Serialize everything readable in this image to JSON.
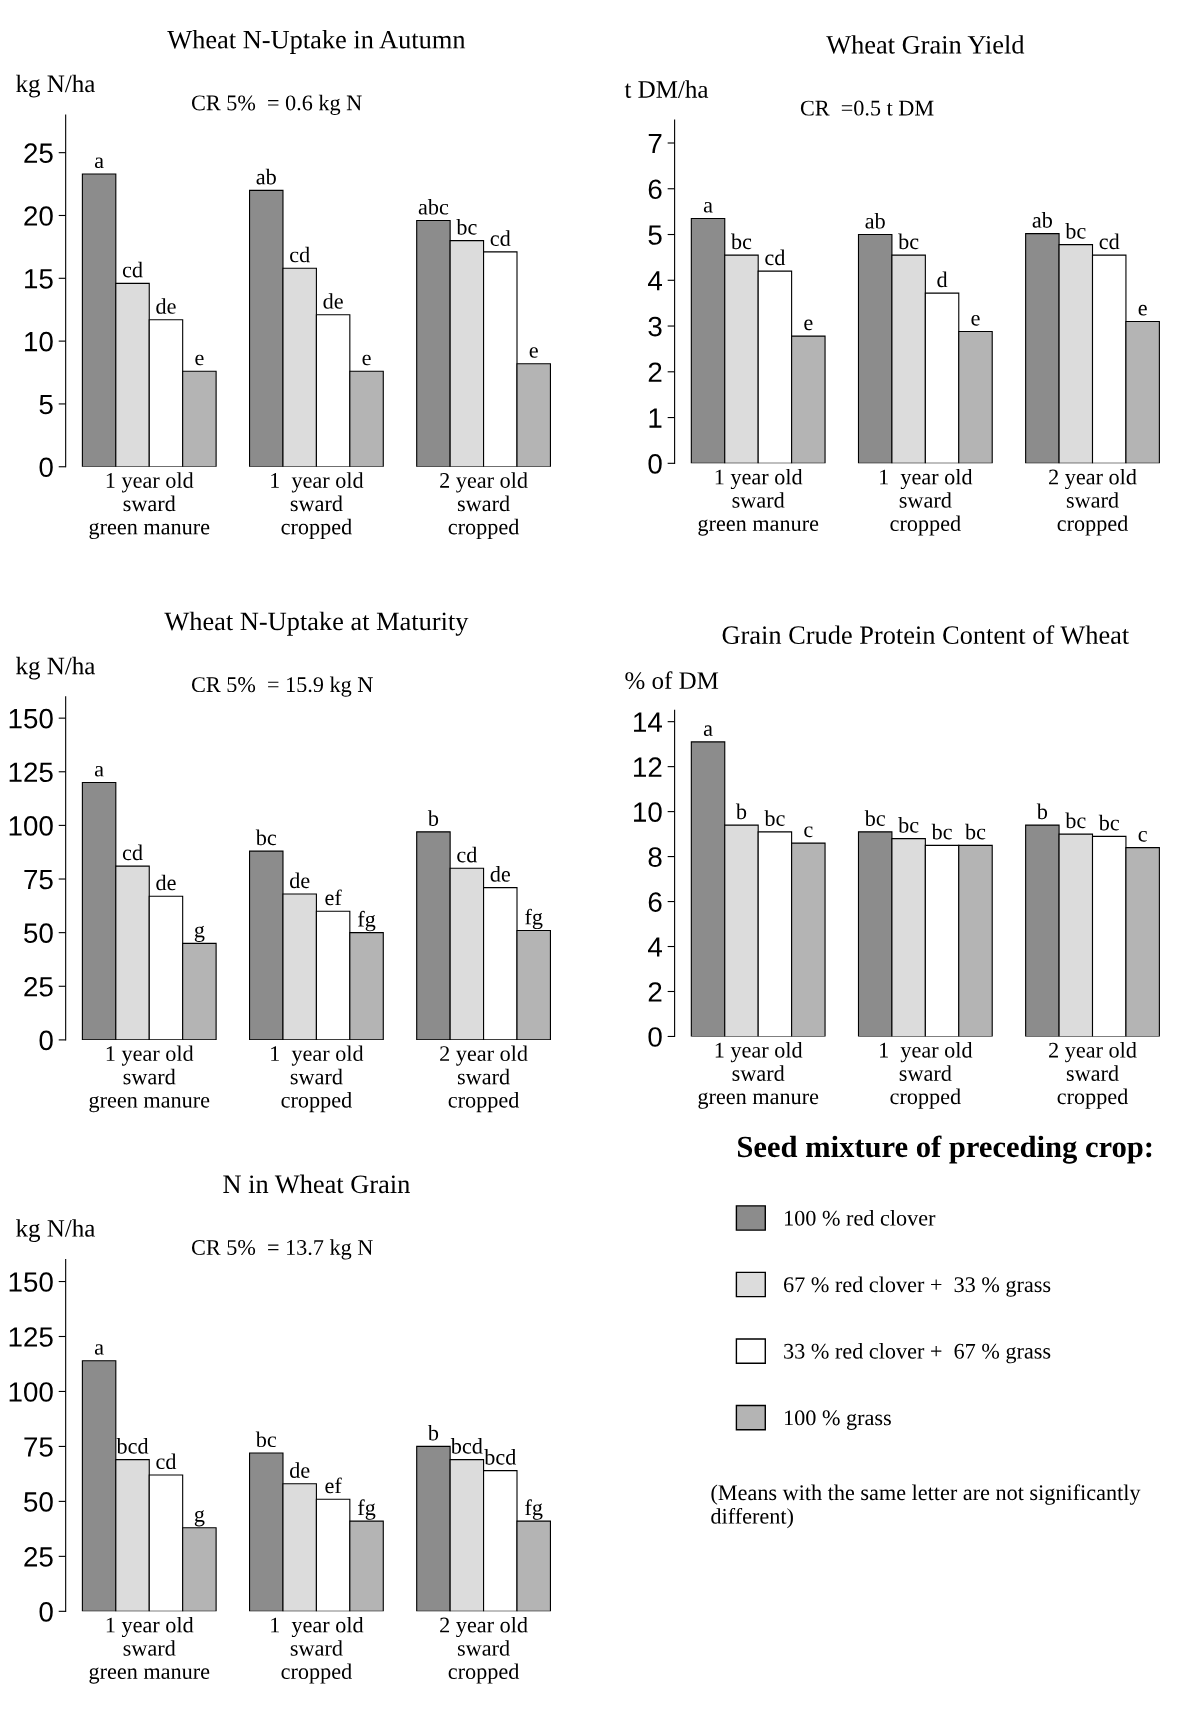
{
  "chart_data": [
    {
      "type": "bar",
      "title": "Wheat N-Uptake in Autumn",
      "ylabel": "kg N/ha",
      "categories": [
        "1 year old\nsward\ngreen manure",
        "1  year old\nsward\ncropped",
        "2 year old\nsward\ncropped"
      ],
      "ylim": [
        0,
        28
      ],
      "yticks": [
        0,
        5,
        10,
        15,
        20,
        25
      ],
      "grid": false,
      "annotations": [
        "CR 5%  = 0.6 kg N"
      ],
      "series": [
        {
          "color": "#8c8c8c",
          "values": [
            23.3,
            22.0,
            19.6
          ],
          "value_labels": [
            "a",
            "ab",
            "abc"
          ]
        },
        {
          "color": "#dcdcdc",
          "values": [
            14.6,
            15.8,
            18.0
          ],
          "value_labels": [
            "cd",
            "cd",
            "bc"
          ]
        },
        {
          "color": "#ffffff",
          "values": [
            11.7,
            12.1,
            17.1
          ],
          "value_labels": [
            "de",
            "de",
            "cd"
          ]
        },
        {
          "color": "#b4b4b4",
          "values": [
            7.6,
            7.6,
            8.2
          ],
          "value_labels": [
            "e",
            "e",
            "e"
          ]
        }
      ]
    },
    {
      "type": "bar",
      "title": "Wheat Grain Yield",
      "ylabel": "t DM/ha",
      "categories": [
        "1 year old\nsward\ngreen manure",
        "1  year old\nsward\ncropped",
        "2 year old\nsward\ncropped"
      ],
      "ylim": [
        0,
        7.5
      ],
      "yticks": [
        0,
        1,
        2,
        3,
        4,
        5,
        6,
        7
      ],
      "grid": false,
      "annotations": [
        "CR  =0.5 t DM"
      ],
      "series": [
        {
          "color": "#8c8c8c",
          "values": [
            5.35,
            5.0,
            5.02
          ],
          "value_labels": [
            "a",
            "ab",
            "ab"
          ]
        },
        {
          "color": "#dcdcdc",
          "values": [
            4.55,
            4.55,
            4.78
          ],
          "value_labels": [
            "bc",
            "bc",
            "bc"
          ]
        },
        {
          "color": "#ffffff",
          "values": [
            4.2,
            3.72,
            4.55
          ],
          "value_labels": [
            "cd",
            "d",
            "cd"
          ]
        },
        {
          "color": "#b4b4b4",
          "values": [
            2.78,
            2.88,
            3.1
          ],
          "value_labels": [
            "e",
            "e",
            "e"
          ]
        }
      ]
    },
    {
      "type": "bar",
      "title": "Wheat N-Uptake at Maturity",
      "ylabel": "kg N/ha",
      "categories": [
        "1 year old\nsward\ngreen manure",
        "1  year old\nsward\ncropped",
        "2 year old\nsward\ncropped"
      ],
      "ylim": [
        0,
        160
      ],
      "yticks": [
        0,
        25,
        50,
        75,
        100,
        125,
        150
      ],
      "grid": false,
      "annotations": [
        "CR 5%  = 15.9 kg N"
      ],
      "series": [
        {
          "color": "#8c8c8c",
          "values": [
            120,
            88,
            97
          ],
          "value_labels": [
            "a",
            "bc",
            "b"
          ]
        },
        {
          "color": "#dcdcdc",
          "values": [
            81,
            68,
            80
          ],
          "value_labels": [
            "cd",
            "de",
            "cd"
          ]
        },
        {
          "color": "#ffffff",
          "values": [
            67,
            60,
            71
          ],
          "value_labels": [
            "de",
            "ef",
            "de"
          ]
        },
        {
          "color": "#b4b4b4",
          "values": [
            45,
            50,
            51
          ],
          "value_labels": [
            "g",
            "fg",
            "fg"
          ]
        }
      ]
    },
    {
      "type": "bar",
      "title": "Grain Crude Protein Content of Wheat",
      "ylabel": "% of DM",
      "categories": [
        "1 year old\nsward\ngreen manure",
        "1  year old\nsward\ncropped",
        "2 year old\nsward\ncropped"
      ],
      "ylim": [
        0,
        14.5
      ],
      "yticks": [
        0,
        2,
        4,
        6,
        8,
        10,
        12,
        14
      ],
      "grid": false,
      "series": [
        {
          "color": "#8c8c8c",
          "values": [
            13.1,
            9.1,
            9.4
          ],
          "value_labels": [
            "a",
            "bc",
            "b"
          ]
        },
        {
          "color": "#dcdcdc",
          "values": [
            9.4,
            8.8,
            9.0
          ],
          "value_labels": [
            "b",
            "bc",
            "bc"
          ]
        },
        {
          "color": "#ffffff",
          "values": [
            9.1,
            8.5,
            8.9
          ],
          "value_labels": [
            "bc",
            "bc",
            "bc"
          ]
        },
        {
          "color": "#b4b4b4",
          "values": [
            8.6,
            8.5,
            8.4
          ],
          "value_labels": [
            "c",
            "bc",
            "c"
          ]
        }
      ]
    },
    {
      "type": "bar",
      "title": "N in Wheat Grain",
      "ylabel": "kg N/ha",
      "categories": [
        "1 year old\nsward\ngreen manure",
        "1  year old\nsward\ncropped",
        "2 year old\nsward\ncropped"
      ],
      "ylim": [
        0,
        160
      ],
      "yticks": [
        0,
        25,
        50,
        75,
        100,
        125,
        150
      ],
      "grid": false,
      "legend": "right",
      "legend_title": "Seed mixture of preceding crop:",
      "annotations": [
        "CR 5%  = 13.7 kg N",
        "(Means with the same letter are not significantly different)"
      ],
      "series": [
        {
          "name": "100 % red clover",
          "color": "#8c8c8c",
          "values": [
            114,
            72,
            75
          ],
          "value_labels": [
            "a",
            "bc",
            "b"
          ]
        },
        {
          "name": "67 % red clover +  33 % grass",
          "color": "#dcdcdc",
          "values": [
            69,
            58,
            69
          ],
          "value_labels": [
            "bcd",
            "de",
            "bcd"
          ]
        },
        {
          "name": "33 % red clover +  67 % grass",
          "color": "#ffffff",
          "values": [
            62,
            51,
            64
          ],
          "value_labels": [
            "cd",
            "ef",
            "bcd"
          ]
        },
        {
          "name": "100 % grass",
          "color": "#b4b4b4",
          "values": [
            38,
            41,
            41
          ],
          "value_labels": [
            "g",
            "fg",
            "fg"
          ]
        }
      ]
    }
  ]
}
